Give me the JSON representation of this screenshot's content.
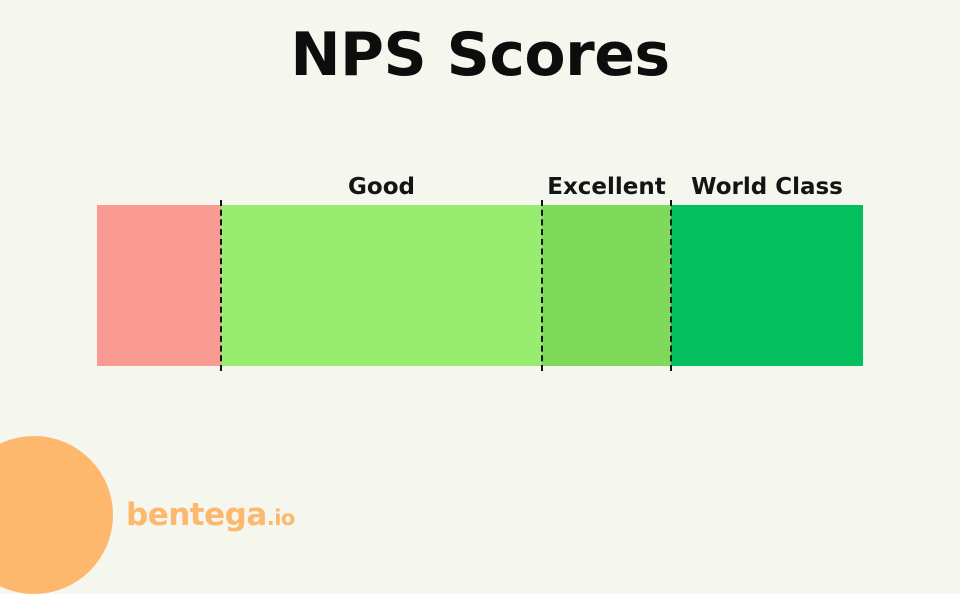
{
  "title": "NPS Scores",
  "segments": [
    {
      "label": "",
      "color": "#f99b93"
    },
    {
      "label": "Good",
      "color": "#98ec70"
    },
    {
      "label": "Excellent",
      "color": "#7fd95a"
    },
    {
      "label": "World Class",
      "color": "#03bf5d"
    }
  ],
  "brand": {
    "name": "bentega",
    "tld": ".io",
    "color": "#fdb86d"
  }
}
